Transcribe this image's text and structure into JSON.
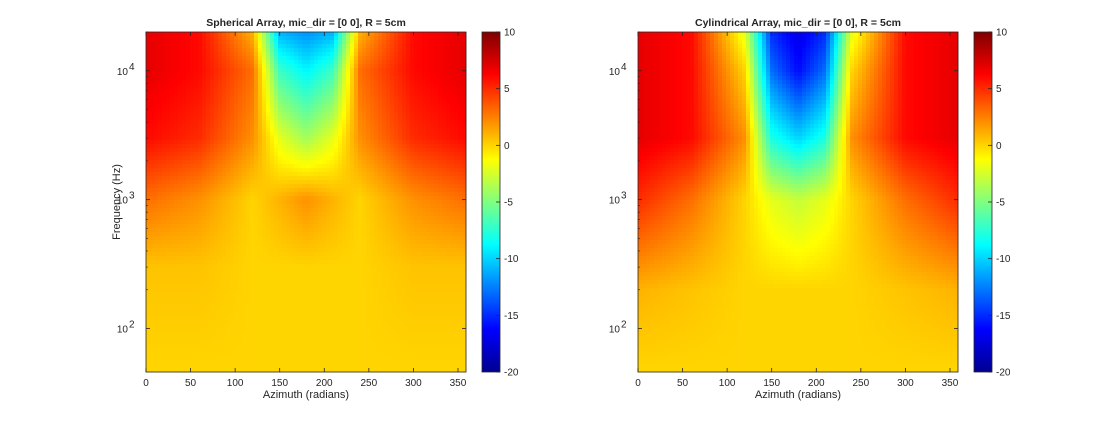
{
  "figure": {
    "background": "#ffffff"
  },
  "chart_data": [
    {
      "type": "heatmap",
      "title": "Spherical Array, mic_dir = [0 0], R = 5cm",
      "xlabel": "Azimuth (radians)",
      "ylabel": "Frequency (Hz)",
      "xlim": [
        0,
        359
      ],
      "ylim": [
        46,
        20000
      ],
      "yscale": "log",
      "xticks": [
        0,
        50,
        100,
        150,
        200,
        250,
        300,
        350
      ],
      "xtick_labels": [
        "0",
        "50",
        "100",
        "150",
        "200",
        "250",
        "300",
        "350"
      ],
      "yticks": [
        100,
        1000,
        10000
      ],
      "ytick_labels": [
        "10",
        "10",
        "10"
      ],
      "ytick_exponents": [
        "2",
        "3",
        "4"
      ],
      "colormap": "jet",
      "clim": [
        -20,
        10
      ],
      "colorbar_ticks": [
        10,
        5,
        0,
        -5,
        -10,
        -15,
        -20
      ],
      "colorbar_tick_labels": [
        "10",
        "5",
        "0",
        "-5",
        "-10",
        "-15",
        "-20"
      ],
      "z_description": "Array response magnitude; about 0 below ~300 Hz, rising to ~7 near 0/360 azimuth and dropping to about -12 with interference lobes near azimuth 180 above ~5 kHz",
      "z_samples": {
        "frequency": [
          50,
          300,
          1000,
          3000,
          10000,
          20000
        ],
        "azimuth": [
          0,
          60,
          120,
          150,
          180,
          210,
          240,
          300,
          359
        ],
        "values": [
          [
            0,
            0,
            0,
            0,
            0,
            0,
            0,
            0,
            0
          ],
          [
            0.5,
            0.5,
            0,
            0,
            0,
            0,
            0,
            0.5,
            0.5
          ],
          [
            3,
            2,
            0,
            1,
            2,
            1,
            0,
            2,
            3
          ],
          [
            6,
            5,
            2,
            -2,
            -4,
            -2,
            2,
            5,
            6
          ],
          [
            7,
            6,
            3,
            -7,
            -9,
            -7,
            3,
            6,
            7
          ],
          [
            7,
            6,
            1,
            -11,
            -12,
            -11,
            1,
            6,
            7
          ]
        ]
      }
    },
    {
      "type": "heatmap",
      "title": "Cylindrical Array, mic_dir = [0 0], R = 5cm",
      "xlabel": "Azimuth (radians)",
      "ylabel": "",
      "xlim": [
        0,
        359
      ],
      "ylim": [
        46,
        20000
      ],
      "yscale": "log",
      "xticks": [
        0,
        50,
        100,
        150,
        200,
        250,
        300,
        350
      ],
      "xtick_labels": [
        "0",
        "50",
        "100",
        "150",
        "200",
        "250",
        "300",
        "350"
      ],
      "yticks": [
        100,
        1000,
        10000
      ],
      "ytick_labels": [
        "10",
        "10",
        "10"
      ],
      "ytick_exponents": [
        "2",
        "3",
        "4"
      ],
      "colormap": "jet",
      "clim": [
        -20,
        10
      ],
      "colorbar_ticks": [
        10,
        5,
        0,
        -5,
        -10,
        -15,
        -20
      ],
      "colorbar_tick_labels": [
        "10",
        "5",
        "0",
        "-5",
        "-10",
        "-15",
        "-20"
      ],
      "z_description": "Array response magnitude; about 0 below ~200 Hz, rising to ~7 near 0/360 azimuth and dropping to about -17 with interference lobes near azimuth 180 above ~2 kHz",
      "z_samples": {
        "frequency": [
          50,
          200,
          1000,
          3000,
          10000,
          20000
        ],
        "azimuth": [
          0,
          60,
          120,
          150,
          180,
          210,
          240,
          300,
          359
        ],
        "values": [
          [
            0,
            0,
            0,
            0,
            0,
            0,
            0,
            0,
            0
          ],
          [
            1,
            0.5,
            0,
            0,
            0,
            0,
            0,
            0.5,
            1
          ],
          [
            5,
            3,
            0,
            -2,
            -3,
            -2,
            0,
            3,
            5
          ],
          [
            7,
            6,
            2,
            -8,
            -10,
            -8,
            2,
            6,
            7
          ],
          [
            7,
            6,
            0,
            -13,
            -16,
            -13,
            0,
            6,
            7
          ],
          [
            7,
            6,
            -2,
            -15,
            -17,
            -15,
            -2,
            6,
            7
          ]
        ]
      }
    }
  ]
}
